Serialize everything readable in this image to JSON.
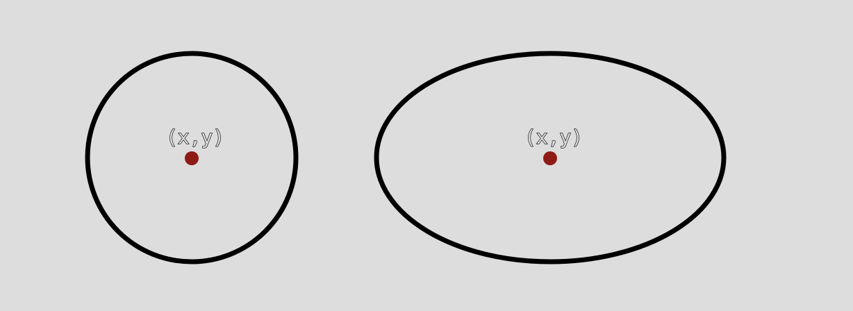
{
  "background_color": "#dddddd",
  "circle": {
    "center_label": "(x,y)",
    "outline_color": "#000000",
    "center_color": "#8e1b14"
  },
  "ellipse": {
    "center_label": "(x,y)",
    "outline_color": "#000000",
    "center_color": "#8e1b14"
  }
}
